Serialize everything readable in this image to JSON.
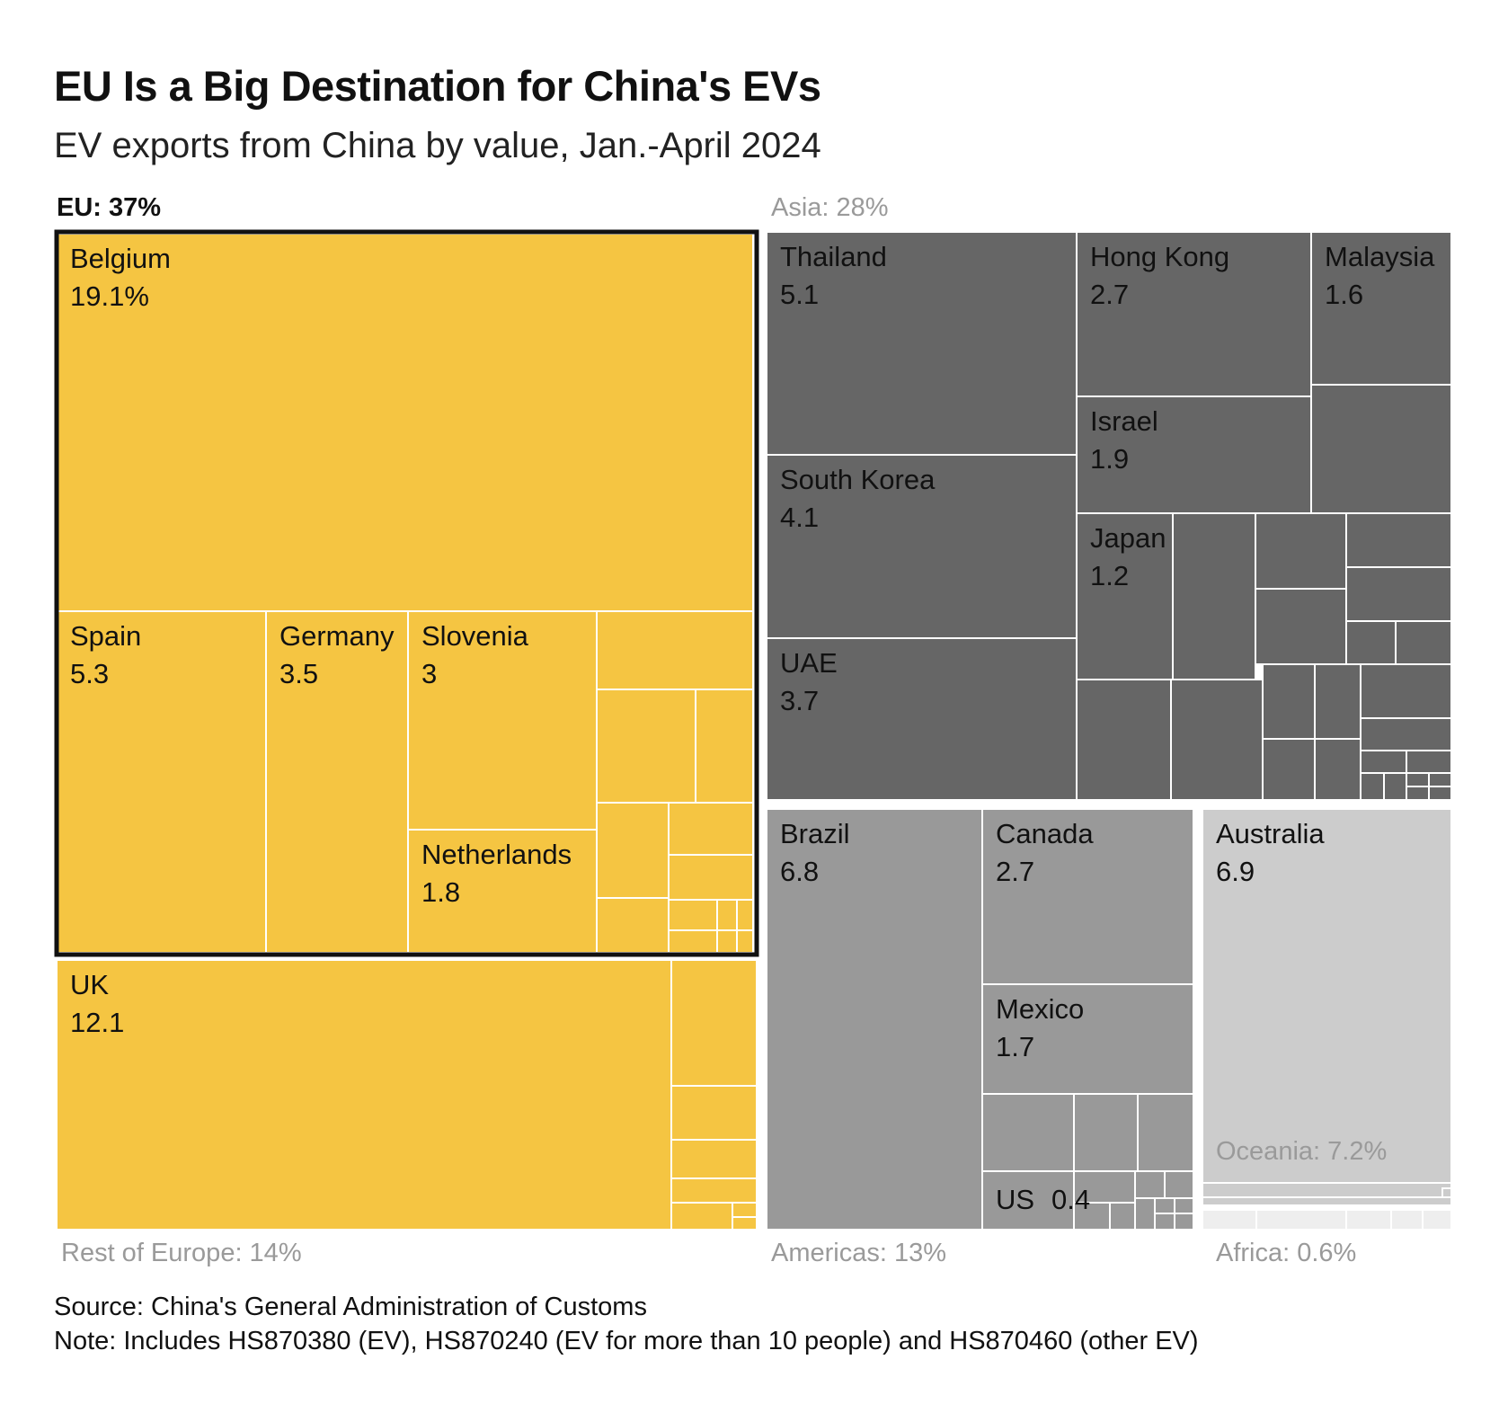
{
  "title": "EU Is a Big Destination for China's EVs",
  "subtitle": "EV exports from China by value, Jan.-April 2024",
  "source": "Source: China's General Administration of Customs",
  "note": "Note: Includes HS870380 (EV), HS870240 (EV for more than 10 people) and HS870460 (other EV)",
  "colors": {
    "eu": "#f5c542",
    "asia": "#666666",
    "americas": "#999999",
    "oceania": "#cccccc",
    "africa": "#eeeeee",
    "group_label": "#9a9a9a"
  },
  "chart_data": {
    "type": "treemap",
    "groups": [
      {
        "id": "eu",
        "label": "EU: 37%",
        "share_pct": 37,
        "color": "#f5c542",
        "items": [
          {
            "name": "Belgium",
            "label": "19.1%",
            "value": 19.1
          },
          {
            "name": "Spain",
            "label": "5.3",
            "value": 5.3
          },
          {
            "name": "Germany",
            "label": "3.5",
            "value": 3.5
          },
          {
            "name": "Slovenia",
            "label": "3",
            "value": 3
          },
          {
            "name": "Netherlands",
            "label": "1.8",
            "value": 1.8
          }
        ]
      },
      {
        "id": "rest-of-europe",
        "label": "Rest of Europe: 14%",
        "share_pct": 14,
        "color": "#f5c542",
        "items": [
          {
            "name": "UK",
            "label": "12.1",
            "value": 12.1
          }
        ]
      },
      {
        "id": "asia",
        "label": "Asia: 28%",
        "share_pct": 28,
        "color": "#666666",
        "items": [
          {
            "name": "Thailand",
            "label": "5.1",
            "value": 5.1
          },
          {
            "name": "South Korea",
            "label": "4.1",
            "value": 4.1
          },
          {
            "name": "UAE",
            "label": "3.7",
            "value": 3.7
          },
          {
            "name": "Hong Kong",
            "label": "2.7",
            "value": 2.7
          },
          {
            "name": "Israel",
            "label": "1.9",
            "value": 1.9
          },
          {
            "name": "Malaysia",
            "label": "1.6",
            "value": 1.6
          },
          {
            "name": "Japan",
            "label": "1.2",
            "value": 1.2
          }
        ]
      },
      {
        "id": "americas",
        "label": "Americas: 13%",
        "share_pct": 13,
        "color": "#999999",
        "items": [
          {
            "name": "Brazil",
            "label": "6.8",
            "value": 6.8
          },
          {
            "name": "Canada",
            "label": "2.7",
            "value": 2.7
          },
          {
            "name": "Mexico",
            "label": "1.7",
            "value": 1.7
          },
          {
            "name": "US",
            "label": "0.4",
            "value": 0.4
          }
        ]
      },
      {
        "id": "oceania",
        "label": "Oceania: 7.2%",
        "share_pct": 7.2,
        "color": "#cccccc",
        "items": [
          {
            "name": "Australia",
            "label": "6.9",
            "value": 6.9
          }
        ]
      },
      {
        "id": "africa",
        "label": "Africa: 0.6%",
        "share_pct": 0.6,
        "color": "#eeeeee",
        "items": []
      }
    ]
  }
}
